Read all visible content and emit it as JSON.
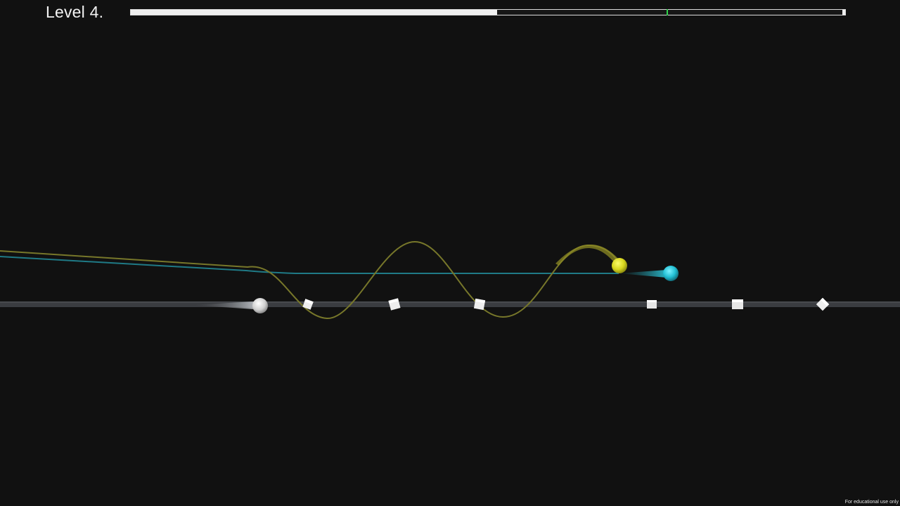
{
  "hud": {
    "level_label": "Level 4.",
    "progress_fraction": 0.513,
    "target_marker_fraction": 0.75
  },
  "footer": {
    "note": "For educational use only"
  },
  "colors": {
    "background": "#111111",
    "track": "#3a3c40",
    "yellow_trail": "#77772a",
    "cyan_trail": "#1f7a86",
    "yellow_ball": "#d8d71e",
    "cyan_ball": "#2cc8dc",
    "white_ball": "#d9d9d9",
    "obstacle": "#eeeeee",
    "progress_fill": "#efefef",
    "target_marker": "#2fd24a"
  },
  "objects": {
    "player_yellow": "yellow-ball",
    "player_cyan": "cyan-ball",
    "start_ball": "white-ball",
    "obstacles": [
      "cube",
      "cube",
      "cube",
      "cube",
      "cube",
      "diamond"
    ]
  }
}
